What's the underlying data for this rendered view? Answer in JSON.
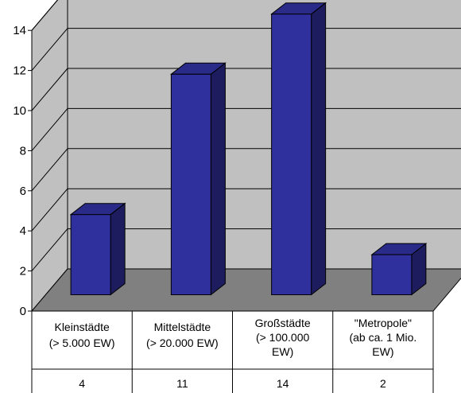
{
  "chart_data": {
    "type": "bar",
    "style": "3d-column-with-data-table",
    "categories": [
      [
        "Kleinstädte",
        "(> 5.000 EW)"
      ],
      [
        "Mittelstädte",
        "(> 20.000 EW)"
      ],
      [
        "Großstädte",
        "(> 100.000",
        "EW)"
      ],
      [
        "\"Metropole\"",
        "(ab ca. 1 Mio.",
        "EW)"
      ]
    ],
    "values": [
      4,
      11,
      14,
      2
    ],
    "value_labels": [
      "4",
      "11",
      "14",
      "2"
    ],
    "ylim": [
      0,
      14
    ],
    "yticks": [
      "0",
      "2",
      "4",
      "6",
      "8",
      "10",
      "12",
      "14"
    ],
    "grid": true,
    "legend": "none",
    "colors": {
      "bar_front": "#2f2f9e",
      "bar_side": "#1c1c5e",
      "bar_top": "#2a2a88",
      "wall": "#c0c0c0",
      "floor": "#808080",
      "grid": "#000000"
    }
  }
}
